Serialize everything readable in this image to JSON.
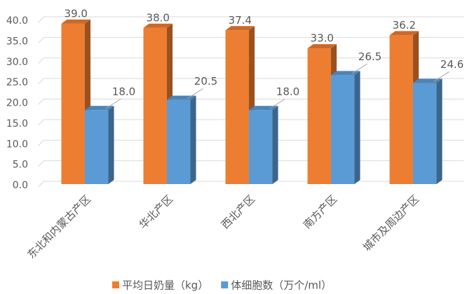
{
  "chart_data": {
    "type": "bar3d",
    "categories": [
      "东北和内蒙古产区",
      "华北产区",
      "西北产区",
      "南方产区",
      "城市及周边产区"
    ],
    "series": [
      {
        "name": "平均日奶量（kg）",
        "color": "#ED7D31",
        "values": [
          39.0,
          38.0,
          37.4,
          33.0,
          36.2
        ],
        "value_labels": [
          "39.0",
          "38.0",
          "37.4",
          "33.0",
          "36.2"
        ]
      },
      {
        "name": "体细胞数（万个/ml）",
        "color": "#5B9BD5",
        "values": [
          18.0,
          20.5,
          18.0,
          26.5,
          24.6
        ],
        "value_labels": [
          "18.0",
          "20.5",
          "18.0",
          "26.5",
          "24.6"
        ]
      }
    ],
    "ylim": [
      0,
      40
    ],
    "yticks": [
      {
        "value": 0,
        "label": "0.0"
      },
      {
        "value": 5,
        "label": "5.0"
      },
      {
        "value": 10,
        "label": "10.0"
      },
      {
        "value": 15,
        "label": "15.0"
      },
      {
        "value": 20,
        "label": "20.0"
      },
      {
        "value": 25,
        "label": "25.0"
      },
      {
        "value": 30,
        "label": "30.0"
      },
      {
        "value": 35,
        "label": "35.0"
      },
      {
        "value": 40,
        "label": "40.0"
      }
    ],
    "grid": true,
    "legend": "bottom"
  }
}
